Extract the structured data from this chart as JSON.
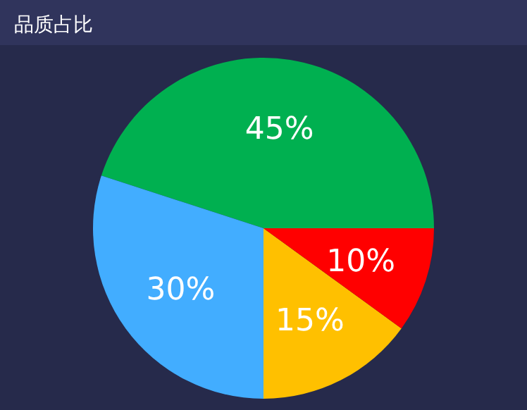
{
  "chart_data": {
    "type": "pie",
    "title": "品质占比",
    "categories": [
      null,
      null,
      null,
      null
    ],
    "values": [
      45,
      30,
      15,
      10
    ],
    "colors": [
      "#00b050",
      "#42adff",
      "#ffc000",
      "#ff0000"
    ],
    "value_labels": [
      "45%",
      "30%",
      "15%",
      "10%"
    ]
  }
}
